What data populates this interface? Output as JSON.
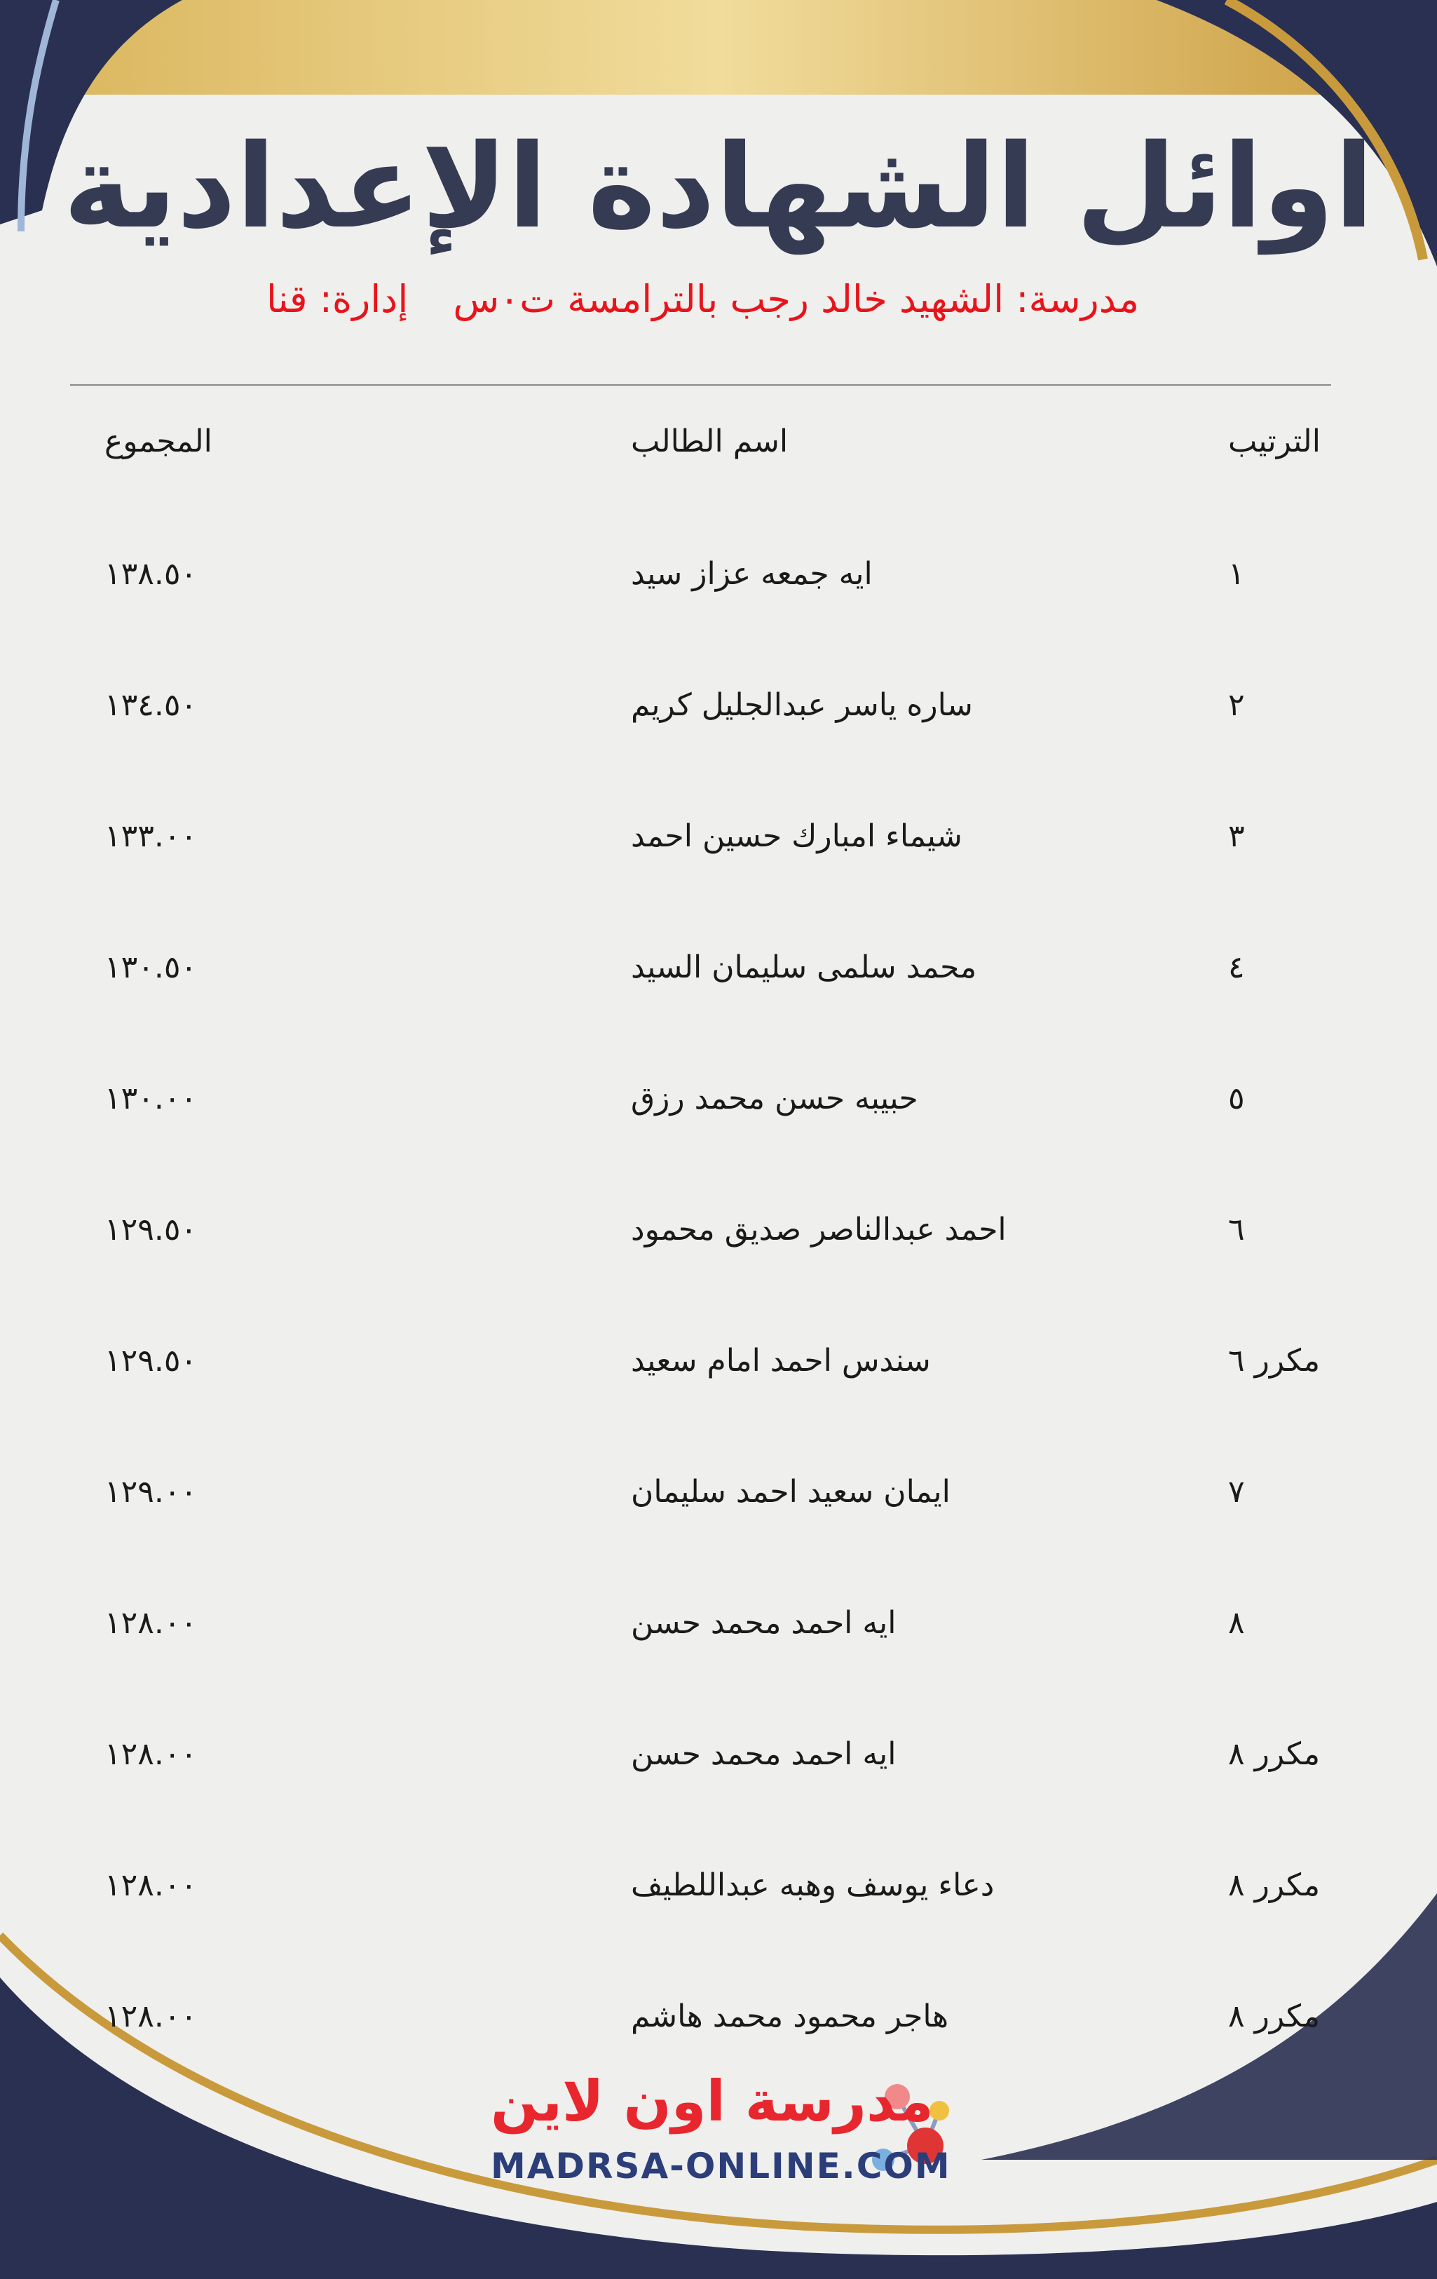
{
  "header": {
    "title": "اوائل الشهادة الإعدادية",
    "school": "مدرسة: الشهيد خالد رجب بالترامسة ت٠س",
    "administration": "إدارة: قنا"
  },
  "table": {
    "columns": [
      "الترتيب",
      "اسم الطالب",
      "المجموع"
    ],
    "rows": [
      [
        "١",
        "ايه جمعه عزاز سيد",
        "١٣٨.٥٠"
      ],
      [
        "٢",
        "ساره ياسر عبدالجليل كريم",
        "١٣٤.٥٠"
      ],
      [
        "٣",
        "شيماء امبارك حسين احمد",
        "١٣٣.٠٠"
      ],
      [
        "٤",
        "محمد سلمى سليمان السيد",
        "١٣٠.٥٠"
      ],
      [
        "٥",
        "حبيبه حسن محمد رزق",
        "١٣٠.٠٠"
      ],
      [
        "٦",
        "احمد عبدالناصر صديق محمود",
        "١٢٩.٥٠"
      ],
      [
        "مكرر ٦",
        "سندس احمد امام سعيد",
        "١٢٩.٥٠"
      ],
      [
        "٧",
        "ايمان سعيد احمد سليمان",
        "١٢٩.٠٠"
      ],
      [
        "٨",
        "ايه احمد محمد حسن",
        "١٢٨.٠٠"
      ],
      [
        "مكرر ٨",
        "ايه احمد محمد حسن",
        "١٢٨.٠٠"
      ],
      [
        "مكرر ٨",
        "دعاء يوسف وهبه عبداللطيف",
        "١٢٨.٠٠"
      ],
      [
        "مكرر ٨",
        "هاجر محمود محمد هاشم",
        "١٢٨.٠٠"
      ]
    ]
  },
  "footer": {
    "logo_text": "مدرسة اون لاين",
    "logo_url": "MADRSA-ONLINE.COM"
  }
}
